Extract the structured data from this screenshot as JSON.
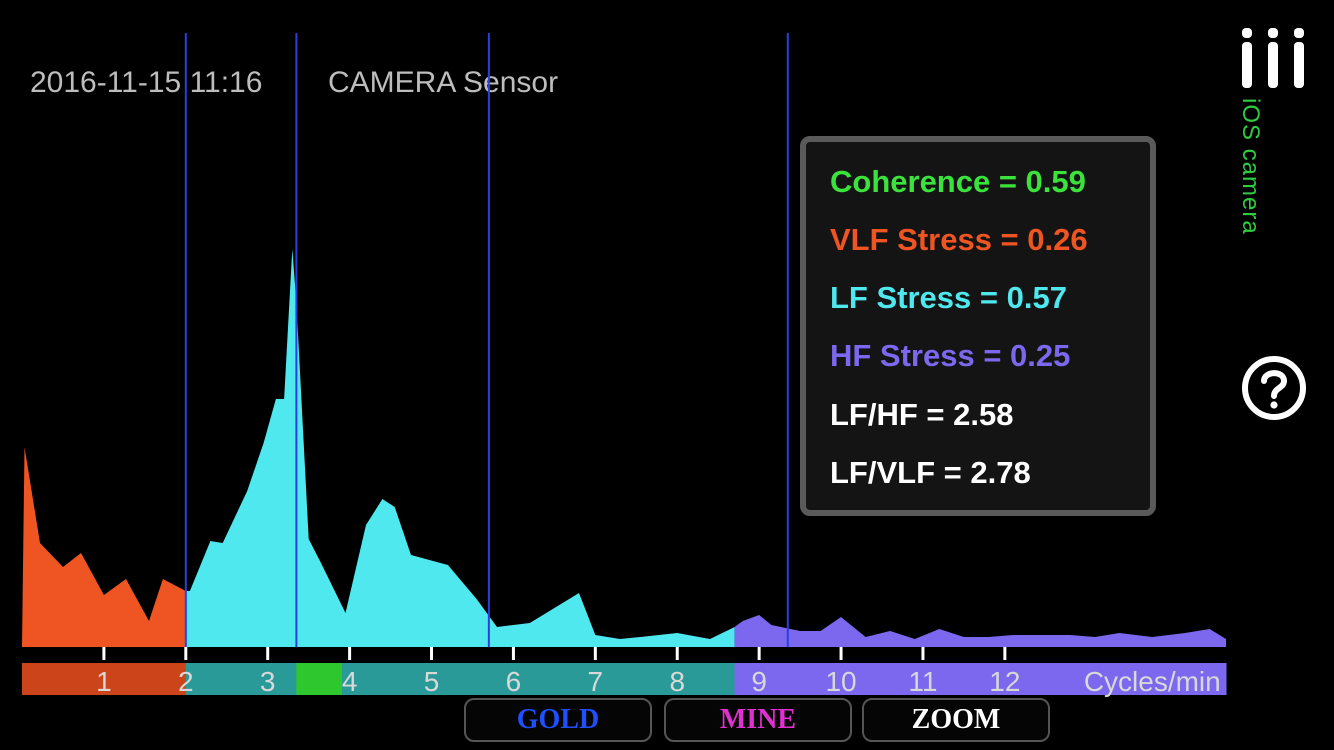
{
  "header": {
    "timestamp": "2016-11-15 11:16",
    "source": "CAMERA Sensor"
  },
  "side_label": "iOS camera",
  "icons": {
    "menu": "menu-bars-icon",
    "help": "question-mark-icon"
  },
  "stats": [
    {
      "label": "Coherence = 0.59",
      "color": "#3be23b"
    },
    {
      "label": "VLF Stress = 0.26",
      "color": "#ee5522"
    },
    {
      "label": "LF Stress = 0.57",
      "color": "#4fe8ee"
    },
    {
      "label": "HF Stress = 0.25",
      "color": "#7b68ee"
    },
    {
      "label": "LF/HF = 2.58",
      "color": "#ffffff"
    },
    {
      "label": "LF/VLF = 2.78",
      "color": "#ffffff"
    }
  ],
  "buttons": [
    {
      "label": "GOLD",
      "color": "#1f4fff"
    },
    {
      "label": "MINE",
      "color": "#e030d0"
    },
    {
      "label": "ZOOM",
      "color": "#ffffff"
    }
  ],
  "chart_data": {
    "type": "area",
    "xlabel": "Cycles/min",
    "xlim": [
      0,
      14.7
    ],
    "ticks": [
      "1",
      "2",
      "3",
      "4",
      "5",
      "6",
      "7",
      "8",
      "9",
      "10",
      "11",
      "12"
    ],
    "vertical_markers": [
      2.0,
      3.35,
      5.7,
      9.35
    ],
    "bands": [
      {
        "name": "VLF",
        "from": 0,
        "to": 2.0,
        "color": "#ee5522",
        "bar_color": "#cc4419"
      },
      {
        "name": "LF",
        "from": 2.0,
        "to": 8.7,
        "color": "#4fe8ee",
        "bar_color": "#2a9a99"
      },
      {
        "name": "coherence",
        "from": 3.35,
        "to": 3.9,
        "bar_color": "#2ec82e"
      },
      {
        "name": "HF",
        "from": 8.7,
        "to": 14.7,
        "color": "#7b68ee",
        "bar_color": "#7b68ee"
      }
    ],
    "series": {
      "x": [
        0.0,
        0.03,
        0.22,
        0.5,
        0.72,
        1.0,
        1.27,
        1.55,
        1.72,
        2.0,
        2.05,
        2.3,
        2.45,
        2.75,
        2.95,
        3.1,
        3.2,
        3.3,
        3.35,
        3.5,
        3.65,
        3.95,
        4.2,
        4.4,
        4.55,
        4.75,
        5.2,
        5.55,
        5.8,
        6.2,
        6.8,
        7.0,
        7.3,
        7.55,
        8.0,
        8.4,
        8.7,
        8.8,
        9.0,
        9.15,
        9.5,
        9.75,
        10.0,
        10.3,
        10.6,
        10.9,
        11.2,
        11.5,
        11.8,
        12.1,
        12.4,
        12.8,
        13.1,
        13.4,
        13.8,
        14.2,
        14.5,
        14.7
      ],
      "y": [
        0.0,
        1.0,
        0.52,
        0.4,
        0.47,
        0.26,
        0.34,
        0.13,
        0.34,
        0.28,
        0.28,
        0.53,
        0.52,
        0.78,
        1.02,
        1.24,
        1.24,
        1.99,
        1.72,
        0.54,
        0.42,
        0.17,
        0.61,
        0.74,
        0.7,
        0.46,
        0.41,
        0.24,
        0.1,
        0.12,
        0.27,
        0.06,
        0.04,
        0.05,
        0.07,
        0.04,
        0.1,
        0.13,
        0.16,
        0.11,
        0.08,
        0.08,
        0.15,
        0.05,
        0.08,
        0.04,
        0.09,
        0.05,
        0.05,
        0.06,
        0.06,
        0.06,
        0.05,
        0.07,
        0.05,
        0.07,
        0.09,
        0.04
      ]
    }
  }
}
